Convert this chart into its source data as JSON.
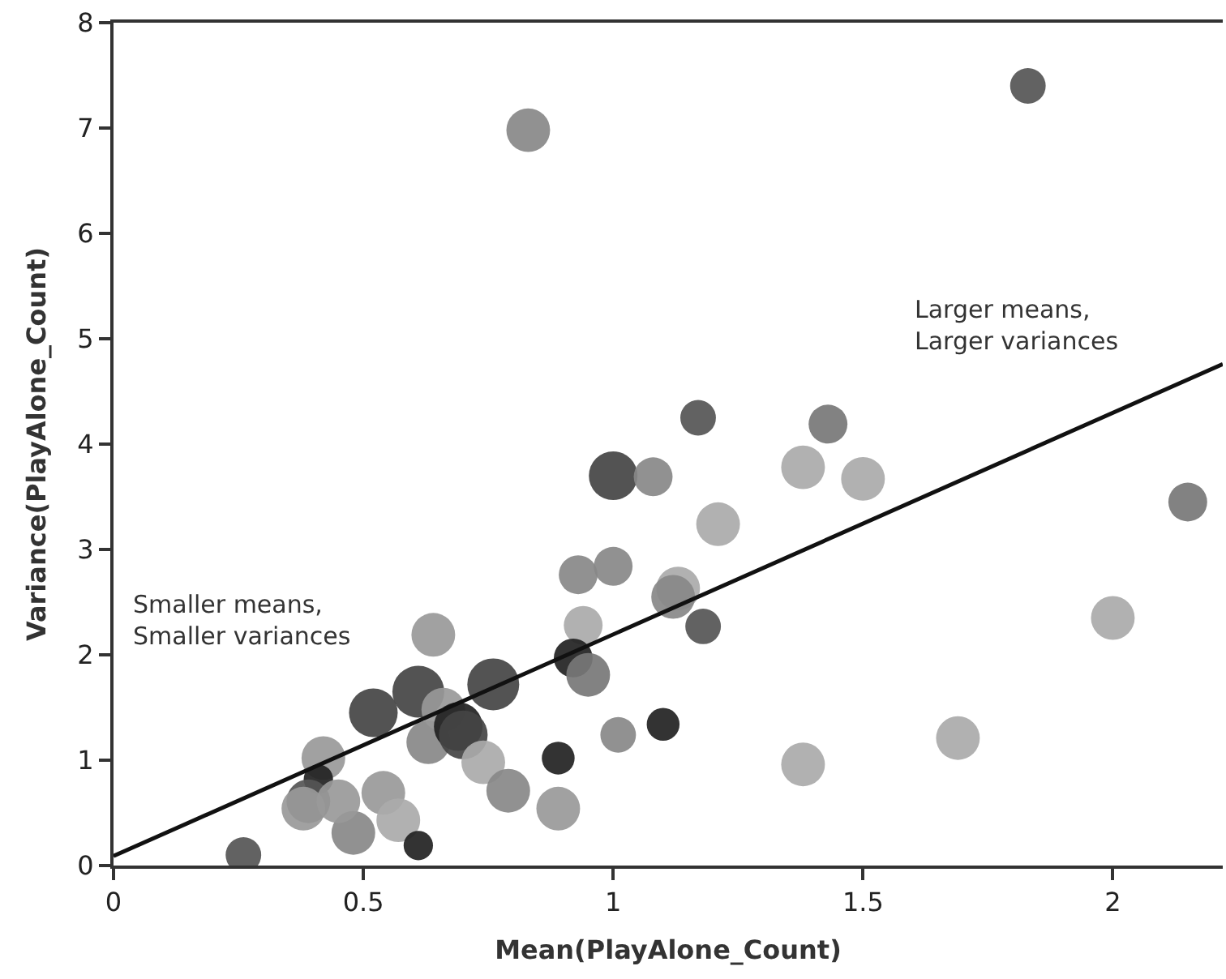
{
  "chart_data": {
    "type": "bubble",
    "xlabel": "Mean(PlayAlone_Count)",
    "ylabel": "Variance(PlayAlone_Count)",
    "xlim": [
      0,
      2.22
    ],
    "ylim": [
      0,
      8
    ],
    "xticks": [
      0,
      0.5,
      1,
      1.5,
      2
    ],
    "yticks": [
      0,
      1,
      2,
      3,
      4,
      5,
      6,
      7,
      8
    ],
    "annotations": [
      "Smaller means,\nSmaller variances",
      "Larger means,\nLarger variances"
    ],
    "series": [
      {
        "x": [
          0.26,
          0.64,
          0.42,
          0.41,
          0.39,
          0.38,
          0.48,
          0.45,
          0.52,
          0.54,
          0.57,
          0.61,
          0.61,
          0.63,
          0.66,
          0.69,
          0.7,
          0.76,
          0.74,
          0.79,
          0.89,
          0.89,
          0.93,
          1.0,
          0.94,
          0.92,
          0.95,
          1.01,
          1.1,
          1.17,
          1.0,
          1.08,
          1.43,
          1.38,
          1.5,
          1.21,
          2.15,
          1.13,
          1.12,
          1.18,
          2.0,
          1.69,
          1.38,
          0.83,
          1.83
        ],
        "values": [
          0.1,
          2.19,
          1.02,
          0.82,
          0.61,
          0.54,
          0.31,
          0.61,
          1.45,
          0.69,
          0.43,
          0.19,
          1.65,
          1.17,
          1.48,
          1.32,
          1.24,
          1.72,
          0.98,
          0.71,
          1.02,
          0.54,
          2.76,
          2.84,
          2.28,
          1.97,
          1.81,
          1.24,
          1.34,
          4.25,
          3.7,
          3.69,
          4.19,
          3.78,
          3.67,
          3.24,
          3.45,
          2.63,
          2.55,
          2.27,
          2.35,
          1.21,
          0.96,
          6.98,
          7.4
        ],
        "sizes": [
          0.47,
          0.71,
          0.71,
          0.32,
          0.71,
          0.71,
          0.71,
          0.71,
          0.88,
          0.71,
          0.71,
          0.32,
          1,
          0.71,
          0.71,
          0.88,
          0.88,
          1,
          0.71,
          0.71,
          0.4,
          0.71,
          0.56,
          0.56,
          0.56,
          0.56,
          0.71,
          0.47,
          0.4,
          0.47,
          0.88,
          0.56,
          0.56,
          0.71,
          0.71,
          0.71,
          0.56,
          0.71,
          0.71,
          0.47,
          0.71,
          0.71,
          0.71,
          0.71,
          0.47
        ],
        "colors": [
          "#555555",
          "#999999",
          "#999999",
          "#222222",
          "#555555",
          "#999999",
          "#888888",
          "#999999",
          "#444444",
          "#999999",
          "#aaaaaa",
          "#222222",
          "#444444",
          "#888888",
          "#999999",
          "#222222",
          "#444444",
          "#444444",
          "#aaaaaa",
          "#888888",
          "#222222",
          "#999999",
          "#888888",
          "#888888",
          "#aaaaaa",
          "#222222",
          "#777777",
          "#888888",
          "#222222",
          "#555555",
          "#444444",
          "#888888",
          "#777777",
          "#aaaaaa",
          "#aaaaaa",
          "#aaaaaa",
          "#777777",
          "#aaaaaa",
          "#888888",
          "#555555",
          "#aaaaaa",
          "#aaaaaa",
          "#aaaaaa",
          "#888888",
          "#555555"
        ]
      },
      {
        "type": "line",
        "x": [
          0,
          2.22
        ],
        "values": [
          0.09,
          4.76
        ],
        "color": "#111111",
        "line_style": "solid",
        "marker": "none"
      }
    ]
  }
}
